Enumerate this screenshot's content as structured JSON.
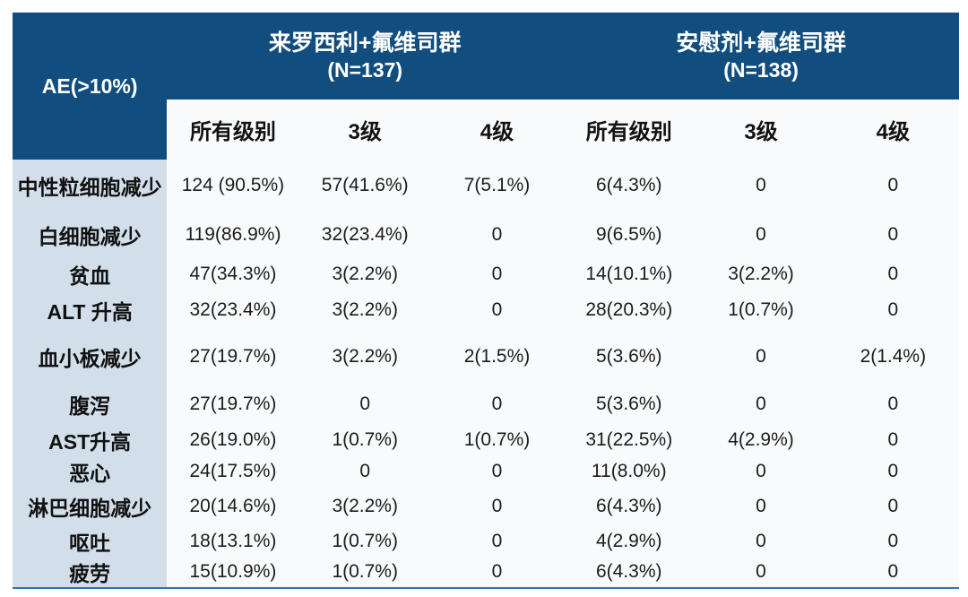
{
  "colors": {
    "header_bg": "#114D7E",
    "label_column_bg": "#D2DFEA",
    "body_bg": "#F9FAFB",
    "bottom_rule": "#2E74B5",
    "header_text": "#FFFFFF",
    "body_text": "#1C1C1C"
  },
  "chart_data": {
    "type": "table",
    "corner_label": "AE(>10%)",
    "column_groups": [
      {
        "title": "来罗西利+氟维司群",
        "n_label": "(N=137)"
      },
      {
        "title": "安慰剂+氟维司群",
        "n_label": "(N=138)"
      }
    ],
    "sub_headers": [
      "所有级别",
      "3级",
      "4级",
      "所有级别",
      "3级",
      "4级"
    ],
    "rows": [
      {
        "label": "中性粒细胞减少",
        "values": [
          "124 (90.5%)",
          "57(41.6%)",
          "7(5.1%)",
          "6(4.3%)",
          "0",
          "0"
        ]
      },
      {
        "label": "白细胞减少",
        "values": [
          "119(86.9%)",
          "32(23.4%)",
          "0",
          "9(6.5%)",
          "0",
          "0"
        ]
      },
      {
        "label": "贫血",
        "values": [
          "47(34.3%)",
          "3(2.2%)",
          "0",
          "14(10.1%)",
          "3(2.2%)",
          "0"
        ]
      },
      {
        "label": "ALT 升高",
        "values": [
          "32(23.4%)",
          "3(2.2%)",
          "0",
          "28(20.3%)",
          "1(0.7%)",
          "0"
        ]
      },
      {
        "label": "血小板减少",
        "values": [
          "27(19.7%)",
          "3(2.2%)",
          "2(1.5%)",
          "5(3.6%)",
          "0",
          "2(1.4%)"
        ]
      },
      {
        "label": "腹泻",
        "values": [
          "27(19.7%)",
          "0",
          "0",
          "5(3.6%)",
          "0",
          "0"
        ]
      },
      {
        "label": "AST升高",
        "values": [
          "26(19.0%)",
          "1(0.7%)",
          "1(0.7%)",
          "31(22.5%)",
          "4(2.9%)",
          "0"
        ]
      },
      {
        "label": "恶心",
        "values": [
          "24(17.5%)",
          "0",
          "0",
          "11(8.0%)",
          "0",
          "0"
        ]
      },
      {
        "label": "淋巴细胞减少",
        "values": [
          "20(14.6%)",
          "3(2.2%)",
          "0",
          "6(4.3%)",
          "0",
          "0"
        ]
      },
      {
        "label": "呕吐",
        "values": [
          "18(13.1%)",
          "1(0.7%)",
          "0",
          "4(2.9%)",
          "0",
          "0"
        ]
      },
      {
        "label": "疲劳",
        "values": [
          "15(10.9%)",
          "1(0.7%)",
          "0",
          "6(4.3%)",
          "0",
          "0"
        ]
      }
    ]
  }
}
